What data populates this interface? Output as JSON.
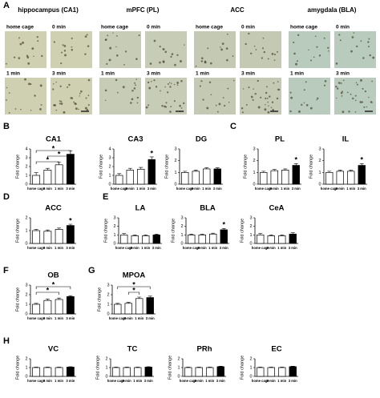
{
  "panel_a": {
    "label": "A",
    "regions": [
      {
        "title": "hippocampus (CA1)",
        "images": [
          "home cage",
          "0 min",
          "1 min",
          "3 min"
        ]
      },
      {
        "title": "mPFC (PL)",
        "images": [
          "home cage",
          "0 min",
          "1 min",
          "3 min"
        ]
      },
      {
        "title": "ACC",
        "images": [
          "home cage",
          "0 min",
          "1 min",
          "3 min"
        ]
      },
      {
        "title": "amygdala (BLA)",
        "images": [
          "home cage",
          "0 min",
          "1 min",
          "3 min"
        ]
      }
    ]
  },
  "panel_labels": [
    "B",
    "C",
    "D",
    "E",
    "F",
    "G",
    "H"
  ],
  "chart_data": [
    {
      "type": "bar",
      "title": "CA1",
      "ylabel": "Fold change",
      "categories": [
        "home cage",
        "0 min",
        "1 min",
        "3 min"
      ],
      "values": [
        1.0,
        1.6,
        2.2,
        3.4
      ],
      "errors": [
        0.3,
        0.2,
        0.3,
        0.4
      ],
      "colors": [
        "#ffffff",
        "#ffffff",
        "#ffffff",
        "#000000"
      ],
      "ylim": [
        0,
        4
      ],
      "yticks": [
        0,
        1,
        2,
        3,
        4
      ],
      "annotations": [
        {
          "text": "*",
          "between": [
            "home cage",
            "3 min"
          ]
        },
        {
          "text": "*",
          "between": [
            "0 min",
            "3 min"
          ]
        },
        {
          "text": "*",
          "between": [
            "home cage",
            "1 min"
          ]
        }
      ]
    },
    {
      "type": "bar",
      "title": "CA3",
      "ylabel": "Fold change",
      "categories": [
        "home cage",
        "0 min",
        "1 min",
        "3 min"
      ],
      "values": [
        1.0,
        1.6,
        1.7,
        2.8
      ],
      "errors": [
        0.2,
        0.2,
        0.2,
        0.3
      ],
      "colors": [
        "#ffffff",
        "#ffffff",
        "#ffffff",
        "#000000"
      ],
      "ylim": [
        0,
        4
      ],
      "yticks": [
        0,
        1,
        2,
        3,
        4
      ],
      "annotations": [
        {
          "text": "*",
          "over": "3 min"
        }
      ]
    },
    {
      "type": "bar",
      "title": "DG",
      "ylabel": "Fold change",
      "categories": [
        "home cage",
        "0 min",
        "1 min",
        "3 min"
      ],
      "values": [
        1.0,
        1.1,
        1.3,
        1.3
      ],
      "errors": [
        0.1,
        0.1,
        0.1,
        0.1
      ],
      "colors": [
        "#ffffff",
        "#ffffff",
        "#ffffff",
        "#000000"
      ],
      "ylim": [
        0,
        3
      ],
      "yticks": [
        0,
        1,
        2,
        3
      ],
      "annotations": []
    },
    {
      "type": "bar",
      "title": "PL",
      "ylabel": "Fold change",
      "categories": [
        "home cage",
        "0 min",
        "1 min",
        "3 min"
      ],
      "values": [
        1.0,
        1.15,
        1.2,
        1.6
      ],
      "errors": [
        0.1,
        0.1,
        0.1,
        0.15
      ],
      "colors": [
        "#ffffff",
        "#ffffff",
        "#ffffff",
        "#000000"
      ],
      "ylim": [
        0,
        3
      ],
      "yticks": [
        0,
        1,
        2,
        3
      ],
      "annotations": [
        {
          "text": "*",
          "over": "3 min"
        }
      ]
    },
    {
      "type": "bar",
      "title": "IL",
      "ylabel": "Fold change",
      "categories": [
        "home cage",
        "0 min",
        "1 min",
        "3 min"
      ],
      "values": [
        1.0,
        1.1,
        1.1,
        1.6
      ],
      "errors": [
        0.1,
        0.1,
        0.1,
        0.15
      ],
      "colors": [
        "#ffffff",
        "#ffffff",
        "#ffffff",
        "#000000"
      ],
      "ylim": [
        0,
        3
      ],
      "yticks": [
        0,
        1,
        2,
        3
      ],
      "annotations": [
        {
          "text": "*",
          "over": "3 min"
        }
      ]
    },
    {
      "type": "bar",
      "title": "ACC",
      "ylabel": "Fold change",
      "categories": [
        "home cage",
        "0 min",
        "1 min",
        "3 min"
      ],
      "values": [
        1.0,
        0.95,
        1.1,
        1.4
      ],
      "errors": [
        0.1,
        0.1,
        0.1,
        0.1
      ],
      "colors": [
        "#ffffff",
        "#ffffff",
        "#ffffff",
        "#000000"
      ],
      "ylim": [
        0,
        2
      ],
      "yticks": [
        0,
        1,
        2
      ],
      "annotations": [
        {
          "text": "*",
          "over": "3 min"
        }
      ]
    },
    {
      "type": "bar",
      "title": "LA",
      "ylabel": "Fold change",
      "categories": [
        "home cage",
        "0 min",
        "1 min",
        "3 min"
      ],
      "values": [
        1.0,
        0.9,
        0.9,
        1.0
      ],
      "errors": [
        0.15,
        0.1,
        0.1,
        0.1
      ],
      "colors": [
        "#ffffff",
        "#ffffff",
        "#ffffff",
        "#000000"
      ],
      "ylim": [
        0,
        3
      ],
      "yticks": [
        0,
        1,
        2,
        3
      ],
      "annotations": []
    },
    {
      "type": "bar",
      "title": "BLA",
      "ylabel": "Fold change",
      "categories": [
        "home cage",
        "0 min",
        "1 min",
        "3 min"
      ],
      "values": [
        1.0,
        1.0,
        1.1,
        1.6
      ],
      "errors": [
        0.1,
        0.1,
        0.1,
        0.15
      ],
      "colors": [
        "#ffffff",
        "#ffffff",
        "#ffffff",
        "#000000"
      ],
      "ylim": [
        0,
        3
      ],
      "yticks": [
        0,
        1,
        2,
        3
      ],
      "annotations": [
        {
          "text": "*",
          "over": "3 min"
        }
      ]
    },
    {
      "type": "bar",
      "title": "CeA",
      "ylabel": "Fold change",
      "categories": [
        "home cage",
        "0 min",
        "1 min",
        "3 min"
      ],
      "values": [
        1.0,
        0.9,
        0.9,
        1.1
      ],
      "errors": [
        0.15,
        0.1,
        0.1,
        0.15
      ],
      "colors": [
        "#ffffff",
        "#ffffff",
        "#ffffff",
        "#000000"
      ],
      "ylim": [
        0,
        3
      ],
      "yticks": [
        0,
        1,
        2,
        3
      ],
      "annotations": []
    },
    {
      "type": "bar",
      "title": "OB",
      "ylabel": "Fold change",
      "categories": [
        "home cage",
        "0 min",
        "1 min",
        "3 min"
      ],
      "values": [
        1.0,
        1.4,
        1.5,
        1.8
      ],
      "errors": [
        0.1,
        0.15,
        0.15,
        0.1
      ],
      "colors": [
        "#ffffff",
        "#ffffff",
        "#ffffff",
        "#000000"
      ],
      "ylim": [
        0,
        3
      ],
      "yticks": [
        0,
        1,
        2,
        3
      ],
      "annotations": [
        {
          "text": "*",
          "between": [
            "home cage",
            "3 min"
          ]
        },
        {
          "text": "*",
          "between": [
            "home cage",
            "1 min"
          ]
        }
      ]
    },
    {
      "type": "bar",
      "title": "MPOA",
      "ylabel": "Fold change",
      "categories": [
        "home cage",
        "0 min",
        "1 min",
        "3 min"
      ],
      "values": [
        1.0,
        1.1,
        1.6,
        1.7
      ],
      "errors": [
        0.1,
        0.1,
        0.15,
        0.15
      ],
      "colors": [
        "#ffffff",
        "#ffffff",
        "#ffffff",
        "#000000"
      ],
      "ylim": [
        0,
        3
      ],
      "yticks": [
        0,
        1,
        2,
        3
      ],
      "annotations": [
        {
          "text": "*",
          "between": [
            "home cage",
            "3 min"
          ]
        },
        {
          "text": "*",
          "between": [
            "0 min",
            "1 min"
          ]
        }
      ]
    },
    {
      "type": "bar",
      "title": "VC",
      "ylabel": "Fold change",
      "categories": [
        "home cage",
        "0 min",
        "1 min",
        "3 min"
      ],
      "values": [
        1.0,
        1.0,
        1.0,
        1.05
      ],
      "errors": [
        0.05,
        0.05,
        0.05,
        0.05
      ],
      "colors": [
        "#ffffff",
        "#ffffff",
        "#ffffff",
        "#000000"
      ],
      "ylim": [
        0,
        2
      ],
      "yticks": [
        0,
        1,
        2
      ],
      "annotations": []
    },
    {
      "type": "bar",
      "title": "TC",
      "ylabel": "Fold change",
      "categories": [
        "home cage",
        "0 min",
        "1 min",
        "3 min"
      ],
      "values": [
        1.0,
        1.0,
        1.0,
        1.05
      ],
      "errors": [
        0.05,
        0.05,
        0.05,
        0.05
      ],
      "colors": [
        "#ffffff",
        "#ffffff",
        "#ffffff",
        "#000000"
      ],
      "ylim": [
        0,
        2
      ],
      "yticks": [
        0,
        1,
        2
      ],
      "annotations": []
    },
    {
      "type": "bar",
      "title": "PRh",
      "ylabel": "Fold change",
      "categories": [
        "home cage",
        "0 min",
        "1 min",
        "3 min"
      ],
      "values": [
        1.0,
        1.0,
        1.0,
        1.1
      ],
      "errors": [
        0.05,
        0.05,
        0.05,
        0.05
      ],
      "colors": [
        "#ffffff",
        "#ffffff",
        "#ffffff",
        "#000000"
      ],
      "ylim": [
        0,
        2
      ],
      "yticks": [
        0,
        1,
        2
      ],
      "annotations": []
    },
    {
      "type": "bar",
      "title": "EC",
      "ylabel": "Fold change",
      "categories": [
        "home cage",
        "0 min",
        "1 min",
        "3 min"
      ],
      "values": [
        1.0,
        1.0,
        1.0,
        1.1
      ],
      "errors": [
        0.05,
        0.05,
        0.05,
        0.05
      ],
      "colors": [
        "#ffffff",
        "#ffffff",
        "#ffffff",
        "#000000"
      ],
      "ylim": [
        0,
        2
      ],
      "yticks": [
        0,
        1,
        2
      ],
      "annotations": []
    }
  ]
}
